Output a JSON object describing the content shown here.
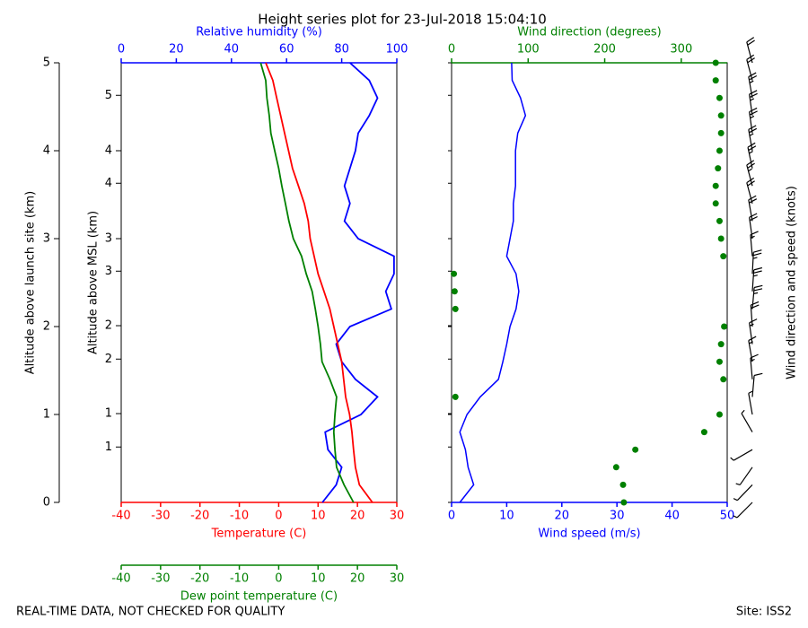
{
  "chart_data": {
    "type": "line",
    "title": "Height series plot for 23-Jul-2018 15:04:10",
    "footer_left": "REAL-TIME DATA, NOT CHECKED FOR QUALITY",
    "footer_right": "Site: ISS2",
    "altitude": [
      0,
      0.2,
      0.4,
      0.6,
      0.8,
      1.0,
      1.2,
      1.4,
      1.6,
      1.8,
      2.0,
      2.2,
      2.4,
      2.6,
      2.8,
      3.0,
      3.2,
      3.4,
      3.6,
      3.8,
      4.0,
      4.2,
      4.4,
      4.6,
      4.8,
      5.0
    ],
    "ylim": [
      0,
      5
    ],
    "yticks": [
      0,
      1,
      2,
      3,
      4,
      5
    ],
    "ylabel": "Altitude above launch site (km)",
    "y2lim": [
      0.37,
      5.37
    ],
    "y2ticks": [
      {
        "value": 1.0,
        "label": "1"
      },
      {
        "value": 1.38,
        "label": "1"
      },
      {
        "value": 2.0,
        "label": "2"
      },
      {
        "value": 2.38,
        "label": "2"
      },
      {
        "value": 3.0,
        "label": "3"
      },
      {
        "value": 3.37,
        "label": "3"
      },
      {
        "value": 4.0,
        "label": "4"
      },
      {
        "value": 4.37,
        "label": "4"
      },
      {
        "value": 5.0,
        "label": "5"
      }
    ],
    "y2label": "Altitude above MSL (km)",
    "temp_axis": {
      "label": "Temperature (C)",
      "color": "#ff0000",
      "xlim": [
        -40,
        30
      ],
      "xticks": [
        -40,
        -30,
        -20,
        -10,
        0,
        10,
        20,
        30
      ]
    },
    "dew_axis": {
      "label": "Dew point temperature (C)",
      "color": "#008000",
      "xlim": [
        -40,
        30
      ],
      "xticks": [
        -40,
        -30,
        -20,
        -10,
        0,
        10,
        20,
        30
      ]
    },
    "rh_axis": {
      "label": "Relative humidity (%)",
      "color": "#0000ff",
      "xlim": [
        0,
        100
      ],
      "xticks": [
        0,
        20,
        40,
        60,
        80,
        100
      ]
    },
    "speed_axis": {
      "label": "Wind speed (m/s)",
      "color": "#0000ff",
      "xlim": [
        0,
        50
      ],
      "xticks": [
        0,
        10,
        20,
        30,
        40,
        50
      ]
    },
    "dir_axis": {
      "label": "Wind direction (degrees)",
      "color": "#008000",
      "xlim": [
        0,
        360
      ],
      "xticks": [
        0,
        100,
        200,
        300
      ]
    },
    "barb_label": "Wind direction and speed (knots)",
    "temperature": {
      "color": "#ff0000",
      "values": [
        23.8,
        20.5,
        19.5,
        19,
        18.6,
        18,
        17,
        16.5,
        16,
        15,
        14,
        13,
        11.5,
        10,
        9,
        8,
        7.5,
        6.5,
        5,
        3.5,
        2.5,
        1.5,
        0.5,
        -0.5,
        -1.5,
        -3.3
      ]
    },
    "dewpoint": {
      "color": "#008000",
      "values": [
        19,
        16.6,
        14.7,
        14.3,
        14,
        14.3,
        14.7,
        13,
        11,
        10.6,
        10,
        9.3,
        8.5,
        7,
        5.8,
        3.7,
        2.6,
        1.7,
        0.8,
        0,
        -1,
        -2,
        -2.4,
        -3,
        -3.3,
        -4.6
      ]
    },
    "rh": {
      "color": "#0000ff",
      "values": [
        73,
        78,
        80,
        75,
        74,
        87,
        93,
        85,
        80,
        78,
        83,
        98,
        96,
        99,
        99,
        86,
        81,
        83,
        81,
        83,
        85,
        86,
        90,
        93,
        90,
        83
      ]
    },
    "wind_speed": {
      "color": "#0000ff",
      "values": [
        1.5,
        4,
        3,
        2.5,
        1.5,
        2.8,
        5.2,
        8.5,
        9.3,
        10,
        10.6,
        11.7,
        12.2,
        11.7,
        10,
        10.6,
        11.2,
        11.2,
        11.6,
        11.6,
        11.6,
        12,
        13.4,
        12.5,
        11,
        10.9
      ]
    },
    "wind_direction": {
      "color": "#008000",
      "values": [
        225,
        224,
        215,
        240,
        330,
        350,
        5,
        355,
        350,
        352,
        356,
        5,
        4,
        3,
        355,
        352,
        350,
        345,
        345,
        348,
        350,
        352,
        352,
        350,
        345,
        345
      ]
    }
  }
}
